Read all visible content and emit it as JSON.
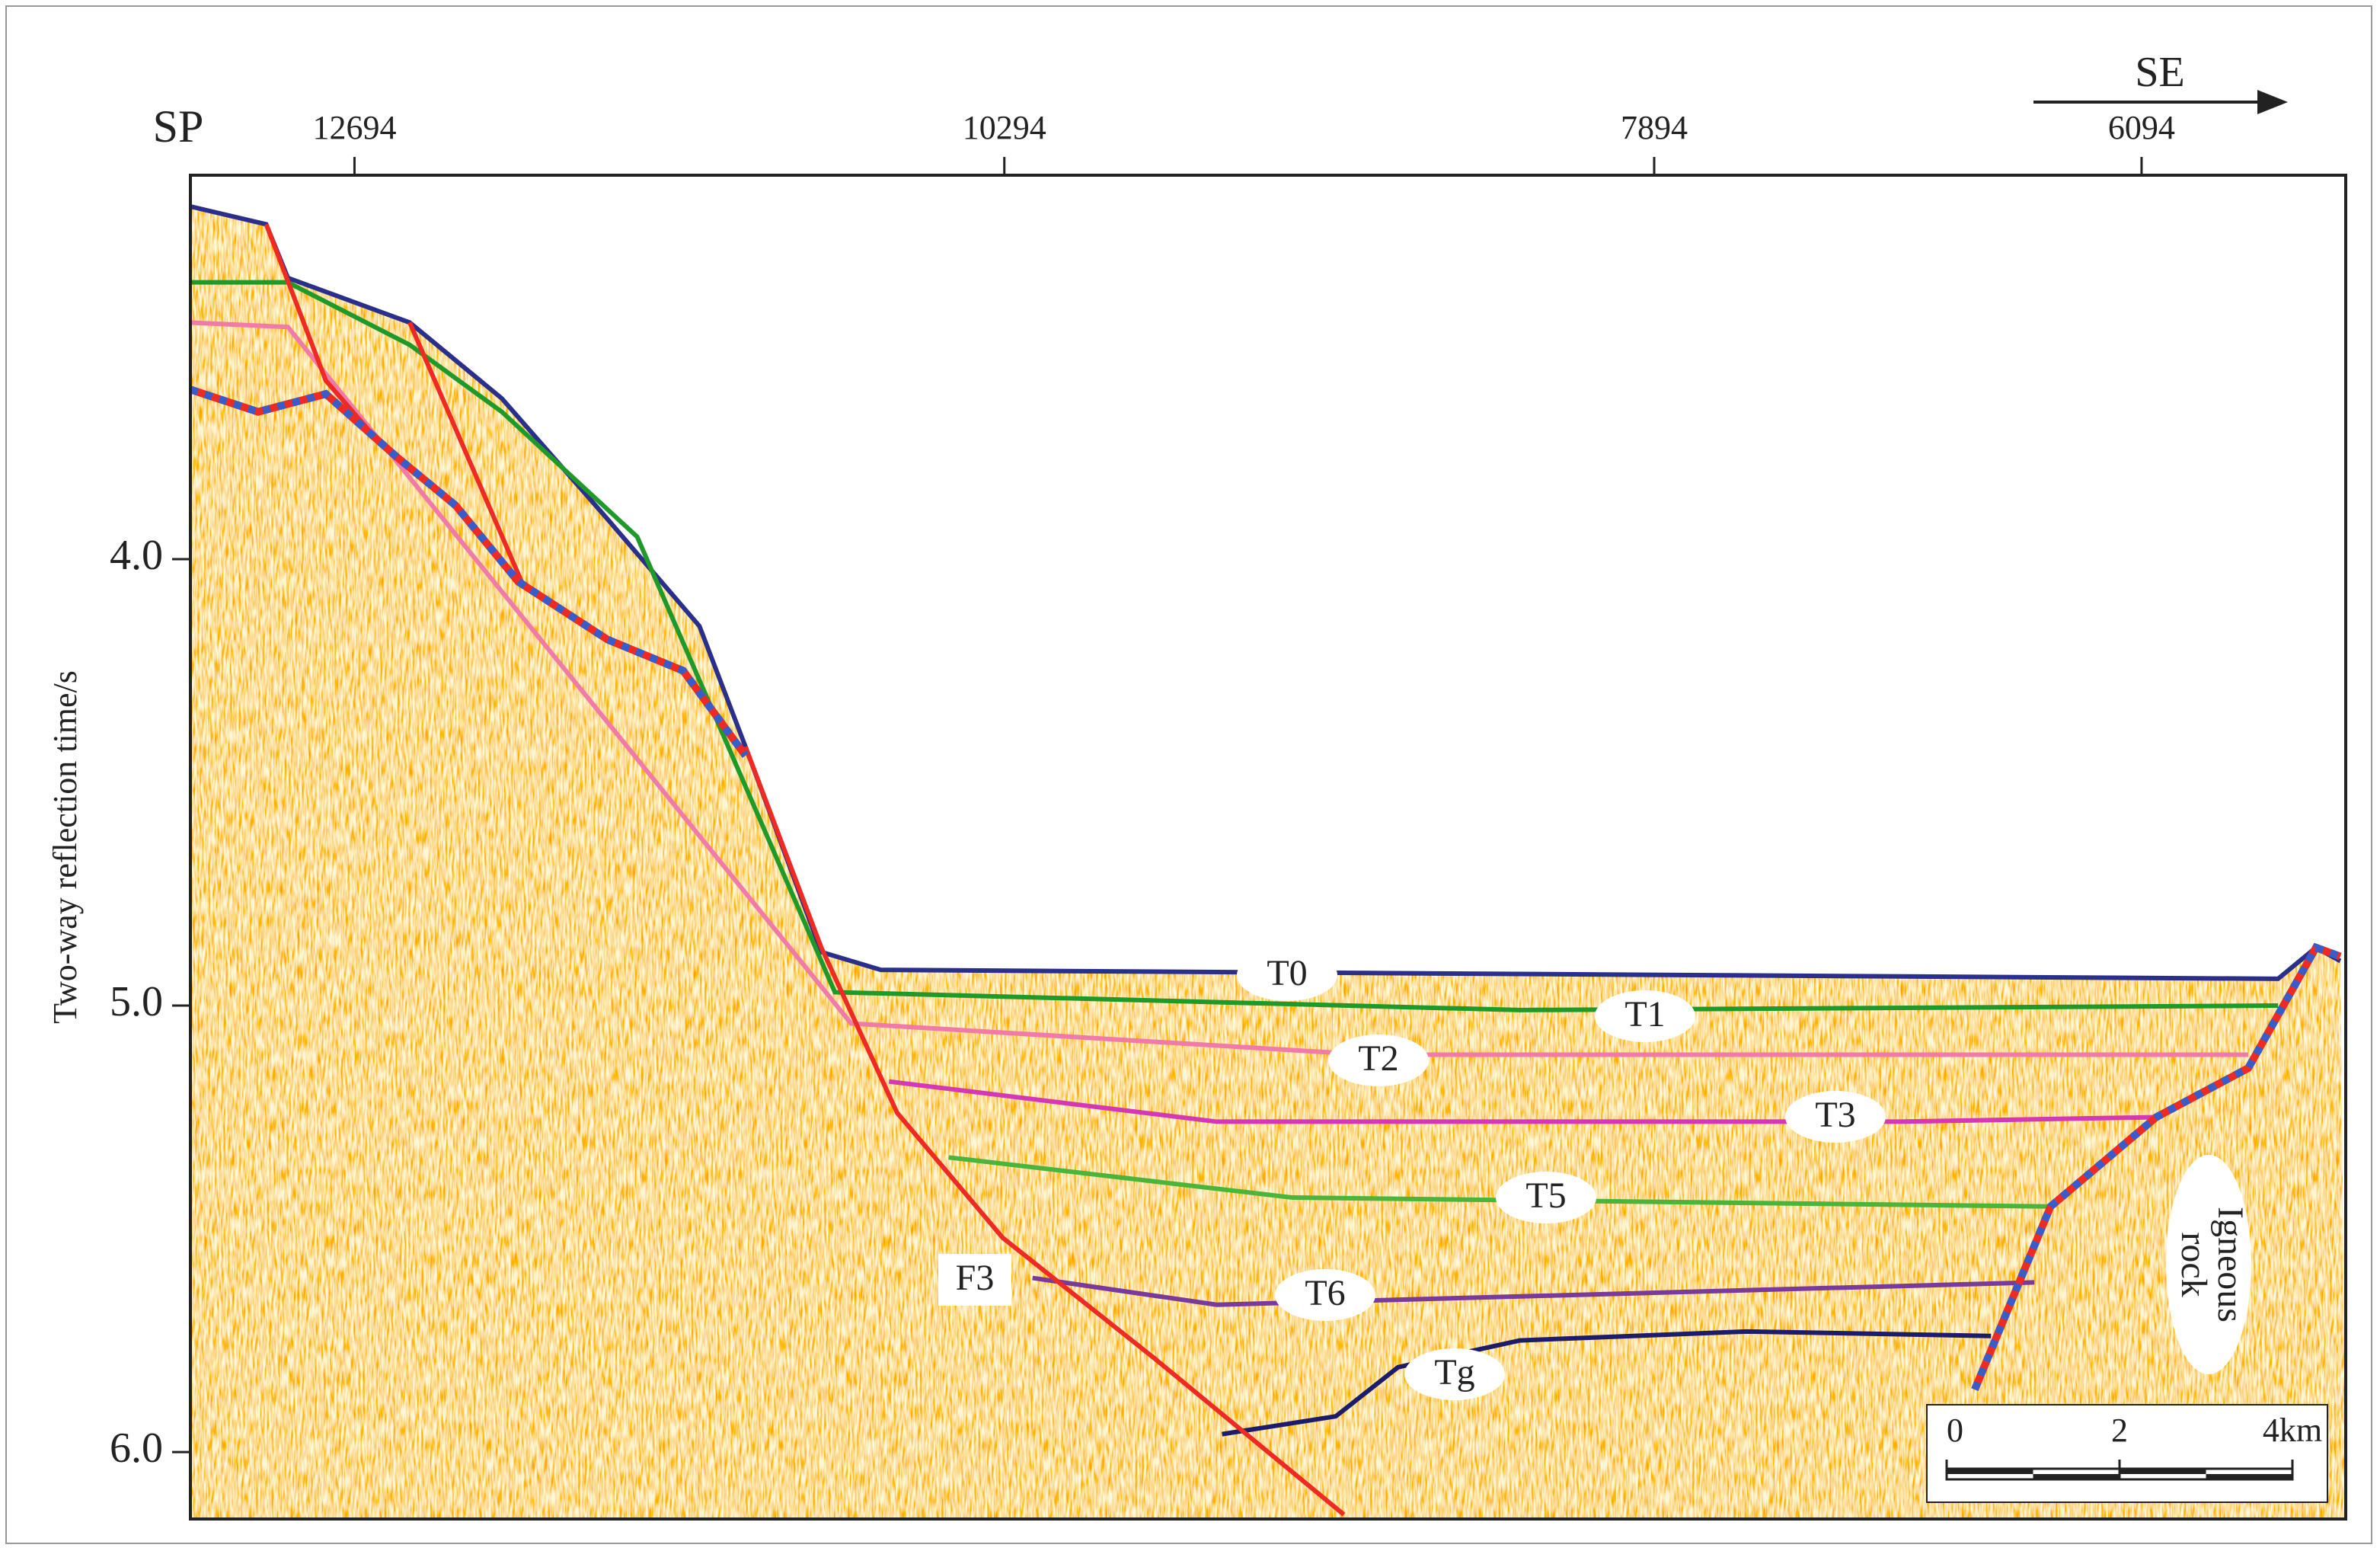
{
  "chart_data": {
    "type": "seismic-section",
    "y_label": "Two-way reflection time/s",
    "x_label": "SP",
    "direction": "SE",
    "xlim": [
      13300,
      5340
    ],
    "xticks": [
      12694,
      10294,
      7894,
      6094
    ],
    "ylim": [
      6.15,
      3.14
    ],
    "yticks": [
      {
        "value": 4,
        "label": "4.0"
      },
      {
        "value": 5,
        "label": "5.0"
      },
      {
        "value": 6,
        "label": "6.0"
      }
    ],
    "series": [
      {
        "name": "T0",
        "color": "#2a2f8c",
        "x": [
          13300,
          13020,
          12940,
          12490,
          12150,
          11760,
          11420,
          11250,
          10970,
          10750,
          5590,
          5450,
          5360
        ],
        "values": [
          3.21,
          3.25,
          3.37,
          3.47,
          3.64,
          3.91,
          4.15,
          4.42,
          4.88,
          4.92,
          4.94,
          4.87,
          4.9
        ]
      },
      {
        "name": "T1",
        "color": "#1f9a2a",
        "x": [
          13300,
          12940,
          12490,
          12150,
          11650,
          10920,
          8390,
          5590
        ],
        "values": [
          3.38,
          3.38,
          3.52,
          3.67,
          3.95,
          4.97,
          5.01,
          5.0
        ]
      },
      {
        "name": "T2",
        "color": "#f07aa8",
        "x": [
          13300,
          12940,
          10860,
          8950,
          5700
        ],
        "values": [
          3.47,
          3.48,
          5.04,
          5.11,
          5.11
        ]
      },
      {
        "name": "T3",
        "color": "#d438b4",
        "x": [
          10720,
          9510,
          6990,
          6040
        ],
        "values": [
          5.17,
          5.26,
          5.26,
          5.25
        ]
      },
      {
        "name": "T5",
        "color": "#4bb43a",
        "x": [
          10500,
          9230,
          6430
        ],
        "values": [
          5.34,
          5.43,
          5.45
        ]
      },
      {
        "name": "T6",
        "color": "#7a3a9a",
        "x": [
          10190,
          9510,
          6490
        ],
        "values": [
          5.61,
          5.67,
          5.62
        ]
      },
      {
        "name": "Tg",
        "color": "#1c1c6a",
        "x": [
          9490,
          9070,
          8840,
          8390,
          7550,
          6650
        ],
        "values": [
          5.96,
          5.92,
          5.81,
          5.75,
          5.73,
          5.74
        ]
      },
      {
        "name": "F3",
        "color": "#ee2a24",
        "x": [
          11250,
          10970,
          10690,
          10300,
          9740,
          9040
        ],
        "values": [
          4.42,
          4.87,
          5.24,
          5.52,
          5.79,
          6.14
        ]
      },
      {
        "color": "#ee2a24",
        "x": [
          13020,
          12800,
          12600
        ],
        "values": [
          3.25,
          3.6,
          3.74
        ]
      },
      {
        "color": "#ee2a24",
        "x": [
          12490,
          12070
        ],
        "values": [
          3.47,
          4.06
        ]
      },
      {
        "color": "#ee2a24",
        "dashed": true,
        "x": [
          13300,
          13050,
          12800,
          12540,
          12320,
          12090,
          11760,
          11480,
          11250
        ],
        "values": [
          3.62,
          3.67,
          3.63,
          3.77,
          3.88,
          4.05,
          4.18,
          4.25,
          4.44
        ]
      },
      {
        "color": "#ee2a24",
        "dashed": true,
        "x": [
          6710,
          6430,
          6040,
          5700,
          5450,
          5360
        ],
        "values": [
          5.86,
          5.45,
          5.25,
          5.14,
          4.87,
          4.89
        ]
      }
    ],
    "annotations": [
      [
        "Igneous",
        "rock"
      ]
    ],
    "scale_bar": {
      "ticks": [
        0,
        2,
        {
          "value": 4,
          "label": "4km"
        }
      ]
    }
  }
}
